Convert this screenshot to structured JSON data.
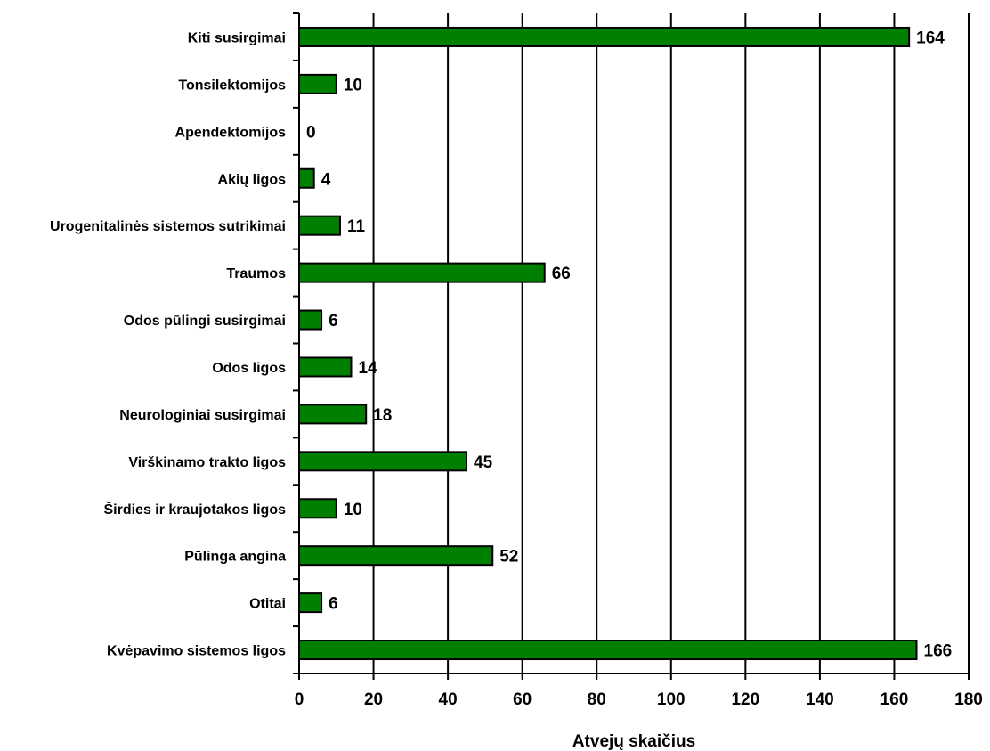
{
  "chart_data": {
    "type": "bar",
    "orientation": "horizontal",
    "title": "",
    "xlabel": "Atvejų skaičius",
    "ylabel": "",
    "xlim": [
      0,
      180
    ],
    "x_ticks": [
      0,
      20,
      40,
      60,
      80,
      100,
      120,
      140,
      160,
      180
    ],
    "grid": "vertical",
    "legend": "none",
    "categories": [
      "Kiti susirgimai",
      "Tonsilektomijos",
      "Apendektomijos",
      "Akių ligos",
      "Urogenitalinės sistemos sutrikimai",
      "Traumos",
      "Odos pūlingi susirgimai",
      "Odos ligos",
      "Neurologiniai susirgimai",
      "Virškinamo trakto ligos",
      "Širdies ir kraujotakos ligos",
      "Pūlinga angina",
      "Otitai",
      "Kvėpavimo sistemos ligos"
    ],
    "values": [
      164,
      10,
      0,
      4,
      11,
      66,
      6,
      14,
      18,
      45,
      10,
      52,
      6,
      166
    ],
    "data_labels": [
      "164",
      "10",
      "0",
      "4",
      "11",
      "66",
      "6",
      "14",
      "18",
      "45",
      "10",
      "52",
      "6",
      "166"
    ],
    "colors": {
      "bar_fill": "#008000",
      "bar_stroke": "#000000",
      "grid": "#000000",
      "text": "#000000"
    }
  }
}
